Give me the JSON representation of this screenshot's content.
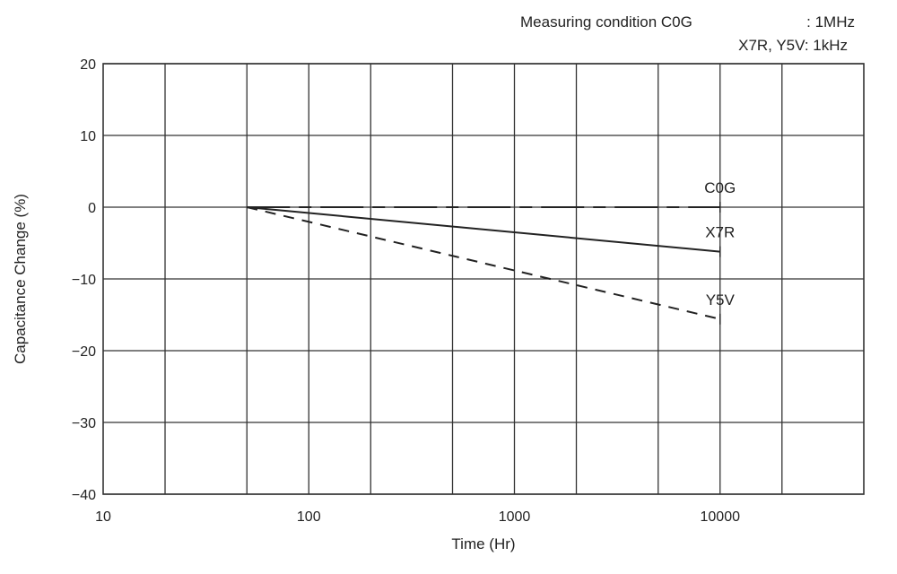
{
  "chart_data": {
    "type": "line",
    "title": "",
    "annotation": {
      "line1_label": "Measuring condition C0G",
      "line1_value": ": 1MHz",
      "line2": "X7R, Y5V: 1kHz"
    },
    "xlabel": "Time (Hr)",
    "ylabel": "Capacitance Change (%)",
    "xscale": "log",
    "xlim": [
      10,
      50000
    ],
    "ylim": [
      -40,
      20
    ],
    "xticks": [
      10,
      100,
      1000,
      10000
    ],
    "xtick_labels": [
      "10",
      "100",
      "1000",
      "10000"
    ],
    "x_gridlines": [
      20,
      50,
      100,
      200,
      500,
      1000,
      2000,
      5000,
      10000,
      20000
    ],
    "yticks": [
      20,
      10,
      0,
      -10,
      -20,
      -30,
      -40
    ],
    "ytick_labels": [
      "20",
      "10",
      "0",
      "−10",
      "−20",
      "−30",
      "−40"
    ],
    "grid": true,
    "series": [
      {
        "name": "C0G",
        "style": "long-dash",
        "x": [
          50,
          10000
        ],
        "y": [
          0,
          0
        ]
      },
      {
        "name": "X7R",
        "style": "solid",
        "x": [
          50,
          10000
        ],
        "y": [
          0,
          -6.2
        ]
      },
      {
        "name": "Y5V",
        "style": "dashed",
        "x": [
          50,
          10000
        ],
        "y": [
          0,
          -15.6
        ]
      }
    ],
    "line_color": "#222222"
  }
}
